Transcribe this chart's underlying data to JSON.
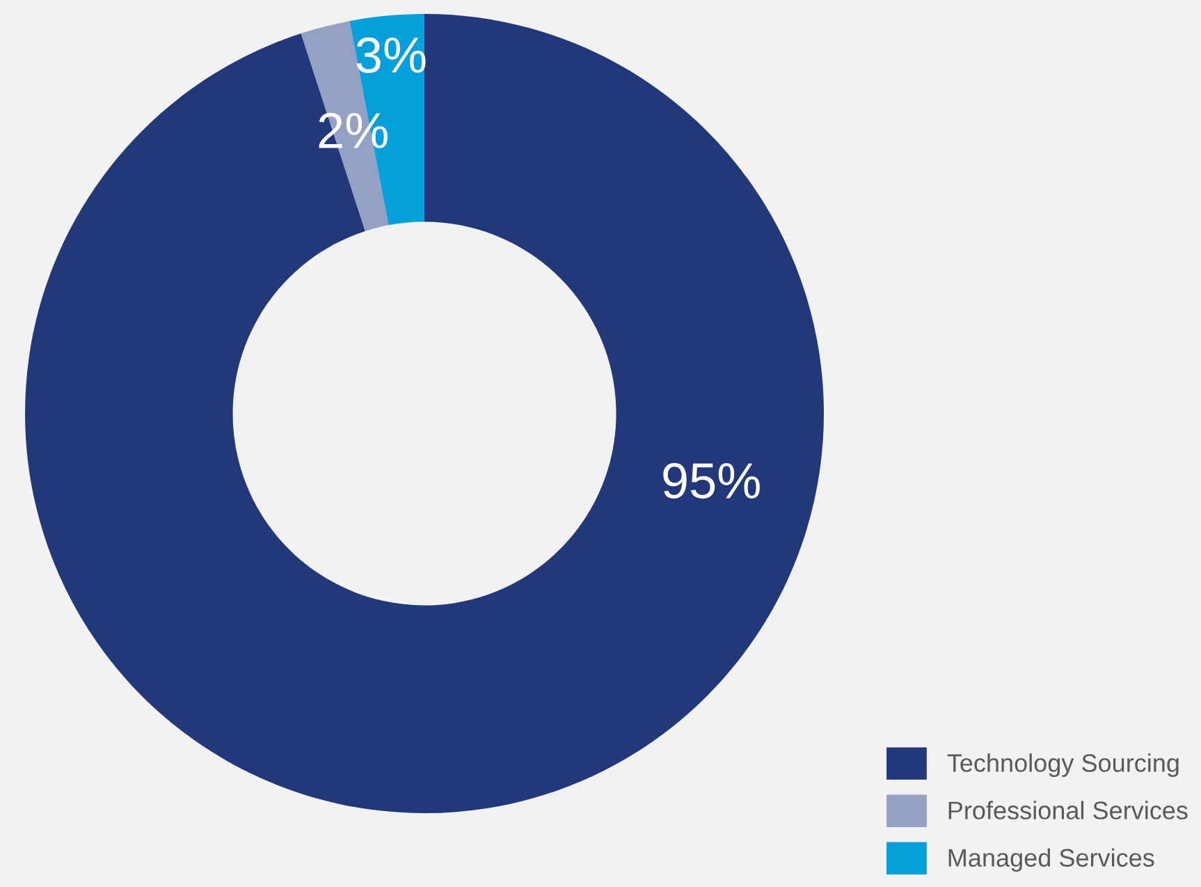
{
  "chart_data": {
    "type": "donut",
    "categories": [
      "Technology Sourcing",
      "Professional Services",
      "Managed Services"
    ],
    "values": [
      95,
      2,
      3
    ],
    "colors": [
      "#23377b",
      "#94a0c4",
      "#05a0dc"
    ],
    "value_labels": [
      "95%",
      "2%",
      "3%"
    ],
    "legend": "bottom right"
  }
}
